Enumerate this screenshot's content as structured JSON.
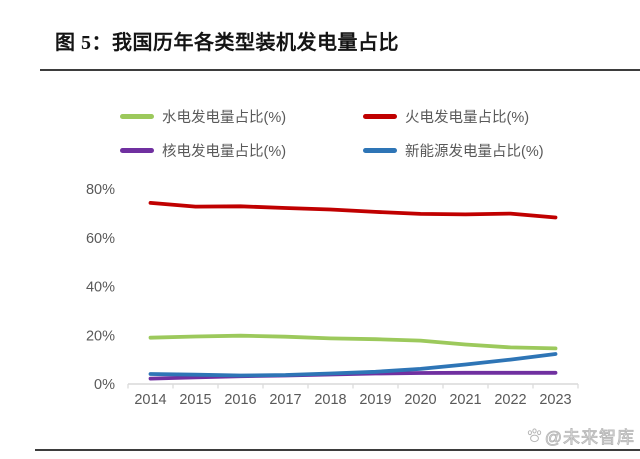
{
  "title": "图 5：我国历年各类型装机发电量占比",
  "watermark": {
    "icon": "paw-icon",
    "text": "@未来智库"
  },
  "colors": {
    "title_text": "#141414",
    "divider": "#3d3d3d",
    "axis_line": "#d9d9d9",
    "tick_label": "#595959",
    "watermark": "#b5b5b5"
  },
  "chart_data": {
    "type": "line",
    "title": "",
    "xlabel": "",
    "ylabel": "",
    "categories": [
      "2014",
      "2015",
      "2016",
      "2017",
      "2018",
      "2019",
      "2020",
      "2021",
      "2022",
      "2023"
    ],
    "series": [
      {
        "name": "水电发电量占比(%)",
        "color": "#9CC95C",
        "values": [
          19.0,
          19.5,
          19.8,
          19.4,
          18.7,
          18.4,
          17.8,
          16.2,
          15.0,
          14.6
        ]
      },
      {
        "name": "火电发电量占比(%)",
        "color": "#C00000",
        "values": [
          74.3,
          72.8,
          72.9,
          72.2,
          71.6,
          70.6,
          69.8,
          69.6,
          69.9,
          68.3
        ]
      },
      {
        "name": "核电发电量占比(%)",
        "color": "#7030A0",
        "values": [
          2.2,
          2.7,
          3.2,
          3.5,
          3.9,
          4.3,
          4.5,
          4.6,
          4.6,
          4.6
        ]
      },
      {
        "name": "新能源发电量占比(%)",
        "color": "#2E75B6",
        "values": [
          4.1,
          3.8,
          3.5,
          3.7,
          4.3,
          5.0,
          6.2,
          8.0,
          10.0,
          12.3
        ]
      }
    ],
    "ylim": [
      0,
      80
    ],
    "y_ticks": [
      "0%",
      "20%",
      "40%",
      "60%",
      "80%"
    ],
    "y_tick_values": [
      0,
      20,
      40,
      60,
      80
    ],
    "grid": false,
    "legend_position": "top"
  }
}
